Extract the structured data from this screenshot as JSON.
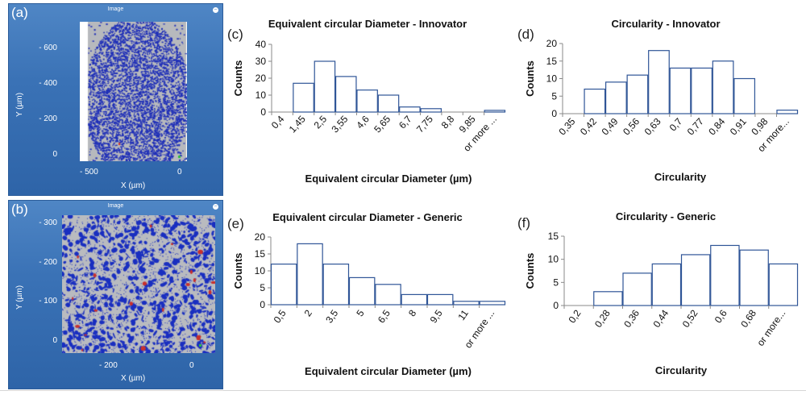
{
  "images": [
    {
      "letter": "(a)",
      "window_title": "Image",
      "y_ticks": [
        "- 600",
        "- 400",
        "- 200",
        "0"
      ],
      "x_ticks": [
        "- 500",
        "0"
      ],
      "x_label": "X (µm)",
      "y_label": "Y (µm)",
      "colors": {
        "panel": "#3a72b6",
        "particles": "#1f2fb8",
        "background": "#b7b9bd",
        "highlight": "#d43a2a",
        "marker": "#2fbf3f"
      }
    },
    {
      "letter": "(b)",
      "window_title": "Image",
      "y_ticks": [
        "- 300",
        "- 200",
        "- 100",
        "0"
      ],
      "x_ticks": [
        "- 200",
        "0"
      ],
      "x_label": "X (µm)",
      "y_label": "Y (µm)",
      "colors": {
        "panel": "#3a72b6",
        "particles": "#1a2fc0",
        "background": "#b9bbbf",
        "highlight": "#c9302c",
        "marker": "#2fbf3f"
      }
    }
  ],
  "chart_data": [
    {
      "type": "bar",
      "letter": "(c)",
      "title": "Equivalent circular Diameter - Innovator",
      "xlabel": "Equivalent circular Diameter (µm)",
      "ylabel": "Counts",
      "categories": [
        "0,4",
        "1,45",
        "2,5",
        "3,55",
        "4,6",
        "5,65",
        "6,7",
        "7,75",
        "8,8",
        "9,85",
        "or more ..."
      ],
      "values": [
        0,
        17,
        30,
        21,
        13,
        10,
        3,
        2,
        0,
        0,
        1
      ],
      "yticks": [
        0,
        10,
        20,
        30,
        40
      ],
      "ylim": [
        0,
        40
      ]
    },
    {
      "type": "bar",
      "letter": "(d)",
      "title": "Circularity - Innovator",
      "xlabel": "Circularity",
      "ylabel": "Counts",
      "categories": [
        "0,35",
        "0,42",
        "0,49",
        "0,56",
        "0,63",
        "0,7",
        "0,77",
        "0,84",
        "0,91",
        "0,98",
        "or more..."
      ],
      "values": [
        0,
        7,
        9,
        11,
        18,
        13,
        13,
        15,
        10,
        0,
        1
      ],
      "yticks": [
        0,
        5,
        10,
        15,
        20
      ],
      "ylim": [
        0,
        20
      ]
    },
    {
      "type": "bar",
      "letter": "(e)",
      "title": "Equivalent circular Diameter - Generic",
      "xlabel": "Equivalent circular Diameter (µm)",
      "ylabel": "Counts",
      "categories": [
        "0,5",
        "2",
        "3,5",
        "5",
        "6,5",
        "8",
        "9,5",
        "11",
        "or more ..."
      ],
      "values": [
        12,
        18,
        12,
        8,
        6,
        3,
        3,
        1,
        1
      ],
      "yticks": [
        0,
        5,
        10,
        15,
        20
      ],
      "ylim": [
        0,
        20
      ]
    },
    {
      "type": "bar",
      "letter": "(f)",
      "title": "Circularity - Generic",
      "xlabel": "Circularity",
      "ylabel": "Counts",
      "categories": [
        "0,2",
        "0,28",
        "0,36",
        "0,44",
        "0,52",
        "0,6",
        "0,68",
        "or more..."
      ],
      "values": [
        0,
        3,
        7,
        9,
        11,
        13,
        12,
        9
      ],
      "yticks": [
        0,
        5,
        10,
        15
      ],
      "ylim": [
        0,
        15
      ]
    }
  ]
}
